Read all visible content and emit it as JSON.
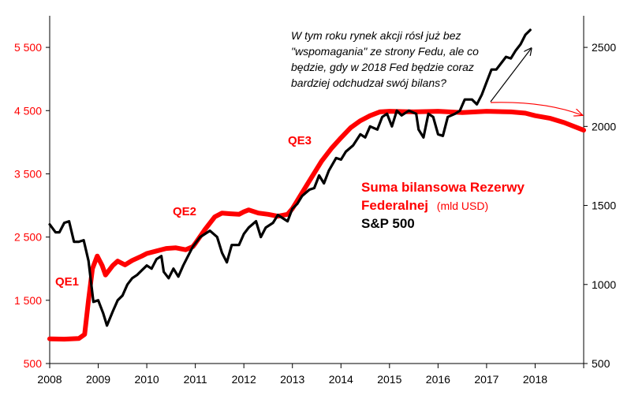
{
  "chart_data": {
    "type": "line",
    "x_range": [
      2008,
      2019
    ],
    "x_ticks": [
      "2008",
      "2009",
      "2010",
      "2011",
      "2012",
      "2013",
      "2014",
      "2015",
      "2016",
      "2017",
      "2018"
    ],
    "y_left": {
      "range": [
        500,
        6000
      ],
      "ticks": [
        500,
        1500,
        2500,
        3500,
        4500,
        5500
      ],
      "tick_labels": [
        "500",
        "1 500",
        "2 500",
        "3 500",
        "4 500",
        "5 500"
      ],
      "color": "#ff0000"
    },
    "y_right": {
      "range": [
        500,
        2700
      ],
      "ticks": [
        500,
        1000,
        1500,
        2000,
        2500
      ],
      "tick_labels": [
        "500",
        "1000",
        "1500",
        "2000",
        "2500"
      ],
      "color": "#000000"
    },
    "series": [
      {
        "name": "Suma bilansowa Rezerwy Federalnej",
        "unit": "(mld USD)",
        "axis": "left",
        "color": "#ff0000",
        "points": [
          [
            2008.0,
            890
          ],
          [
            2008.3,
            885
          ],
          [
            2008.6,
            895
          ],
          [
            2008.72,
            960
          ],
          [
            2008.8,
            1500
          ],
          [
            2008.88,
            2000
          ],
          [
            2008.98,
            2200
          ],
          [
            2009.08,
            2050
          ],
          [
            2009.15,
            1900
          ],
          [
            2009.3,
            2050
          ],
          [
            2009.4,
            2120
          ],
          [
            2009.55,
            2060
          ],
          [
            2009.7,
            2130
          ],
          [
            2009.9,
            2200
          ],
          [
            2010.0,
            2240
          ],
          [
            2010.2,
            2280
          ],
          [
            2010.4,
            2320
          ],
          [
            2010.6,
            2330
          ],
          [
            2010.8,
            2300
          ],
          [
            2010.95,
            2350
          ],
          [
            2011.0,
            2400
          ],
          [
            2011.2,
            2620
          ],
          [
            2011.4,
            2820
          ],
          [
            2011.55,
            2880
          ],
          [
            2011.7,
            2870
          ],
          [
            2011.9,
            2860
          ],
          [
            2012.0,
            2900
          ],
          [
            2012.1,
            2930
          ],
          [
            2012.3,
            2880
          ],
          [
            2012.5,
            2860
          ],
          [
            2012.7,
            2830
          ],
          [
            2012.9,
            2860
          ],
          [
            2013.0,
            2950
          ],
          [
            2013.2,
            3200
          ],
          [
            2013.4,
            3450
          ],
          [
            2013.6,
            3700
          ],
          [
            2013.8,
            3900
          ],
          [
            2014.0,
            4070
          ],
          [
            2014.2,
            4230
          ],
          [
            2014.4,
            4340
          ],
          [
            2014.6,
            4420
          ],
          [
            2014.8,
            4480
          ],
          [
            2015.0,
            4490
          ],
          [
            2015.5,
            4480
          ],
          [
            2016.0,
            4490
          ],
          [
            2016.5,
            4470
          ],
          [
            2017.0,
            4490
          ],
          [
            2017.5,
            4480
          ],
          [
            2017.8,
            4460
          ],
          [
            2018.0,
            4420
          ],
          [
            2018.3,
            4380
          ],
          [
            2018.6,
            4310
          ],
          [
            2018.9,
            4220
          ],
          [
            2019.0,
            4190
          ]
        ]
      },
      {
        "name": "S&P 500",
        "axis": "right",
        "color": "#000000",
        "points": [
          [
            2008.0,
            1380
          ],
          [
            2008.12,
            1330
          ],
          [
            2008.2,
            1330
          ],
          [
            2008.3,
            1390
          ],
          [
            2008.4,
            1400
          ],
          [
            2008.5,
            1270
          ],
          [
            2008.6,
            1270
          ],
          [
            2008.7,
            1280
          ],
          [
            2008.8,
            1150
          ],
          [
            2008.9,
            890
          ],
          [
            2009.0,
            900
          ],
          [
            2009.1,
            820
          ],
          [
            2009.18,
            740
          ],
          [
            2009.3,
            830
          ],
          [
            2009.4,
            900
          ],
          [
            2009.5,
            930
          ],
          [
            2009.6,
            1000
          ],
          [
            2009.7,
            1040
          ],
          [
            2009.8,
            1060
          ],
          [
            2009.9,
            1090
          ],
          [
            2010.0,
            1120
          ],
          [
            2010.1,
            1100
          ],
          [
            2010.2,
            1160
          ],
          [
            2010.3,
            1180
          ],
          [
            2010.35,
            1080
          ],
          [
            2010.45,
            1040
          ],
          [
            2010.55,
            1100
          ],
          [
            2010.65,
            1050
          ],
          [
            2010.75,
            1120
          ],
          [
            2010.85,
            1180
          ],
          [
            2010.95,
            1240
          ],
          [
            2011.1,
            1300
          ],
          [
            2011.3,
            1340
          ],
          [
            2011.45,
            1300
          ],
          [
            2011.55,
            1200
          ],
          [
            2011.65,
            1140
          ],
          [
            2011.75,
            1250
          ],
          [
            2011.9,
            1250
          ],
          [
            2012.0,
            1320
          ],
          [
            2012.1,
            1360
          ],
          [
            2012.25,
            1400
          ],
          [
            2012.35,
            1300
          ],
          [
            2012.45,
            1360
          ],
          [
            2012.6,
            1390
          ],
          [
            2012.7,
            1440
          ],
          [
            2012.8,
            1420
          ],
          [
            2012.9,
            1400
          ],
          [
            2013.0,
            1480
          ],
          [
            2013.1,
            1510
          ],
          [
            2013.2,
            1560
          ],
          [
            2013.35,
            1600
          ],
          [
            2013.45,
            1610
          ],
          [
            2013.55,
            1690
          ],
          [
            2013.65,
            1640
          ],
          [
            2013.75,
            1720
          ],
          [
            2013.9,
            1800
          ],
          [
            2014.0,
            1790
          ],
          [
            2014.1,
            1840
          ],
          [
            2014.25,
            1880
          ],
          [
            2014.4,
            1950
          ],
          [
            2014.5,
            1930
          ],
          [
            2014.6,
            2000
          ],
          [
            2014.75,
            1980
          ],
          [
            2014.85,
            2060
          ],
          [
            2014.95,
            2080
          ],
          [
            2015.05,
            2000
          ],
          [
            2015.15,
            2100
          ],
          [
            2015.25,
            2070
          ],
          [
            2015.4,
            2100
          ],
          [
            2015.55,
            2080
          ],
          [
            2015.6,
            1980
          ],
          [
            2015.7,
            1930
          ],
          [
            2015.8,
            2080
          ],
          [
            2015.9,
            2060
          ],
          [
            2016.0,
            1950
          ],
          [
            2016.1,
            1940
          ],
          [
            2016.2,
            2060
          ],
          [
            2016.35,
            2080
          ],
          [
            2016.45,
            2100
          ],
          [
            2016.55,
            2170
          ],
          [
            2016.7,
            2170
          ],
          [
            2016.8,
            2140
          ],
          [
            2016.9,
            2200
          ],
          [
            2017.0,
            2280
          ],
          [
            2017.1,
            2360
          ],
          [
            2017.2,
            2360
          ],
          [
            2017.3,
            2400
          ],
          [
            2017.4,
            2440
          ],
          [
            2017.5,
            2430
          ],
          [
            2017.6,
            2480
          ],
          [
            2017.7,
            2520
          ],
          [
            2017.8,
            2580
          ],
          [
            2017.9,
            2610
          ]
        ]
      }
    ],
    "annotations": [
      {
        "text": "QE1",
        "x": 2008.15,
        "y_left": 1600
      },
      {
        "text": "QE2",
        "x": 2010.6,
        "y_left": 2850
      },
      {
        "text": "QE3",
        "x": 2012.85,
        "y_left": 4100
      }
    ],
    "legend": {
      "line1": "Suma bilansowa Rezerwy",
      "line2": "Federalnej",
      "unit": "(mld USD)",
      "line3": "S&P 500"
    },
    "comment": [
      "W tym roku rynek akcji rósł już bez",
      "\"wspomagania\" ze strony Fedu, ale co",
      "będzie, gdy w 2018 Fed będzie coraz",
      "bardziej odchudzał swój bilans?"
    ]
  }
}
